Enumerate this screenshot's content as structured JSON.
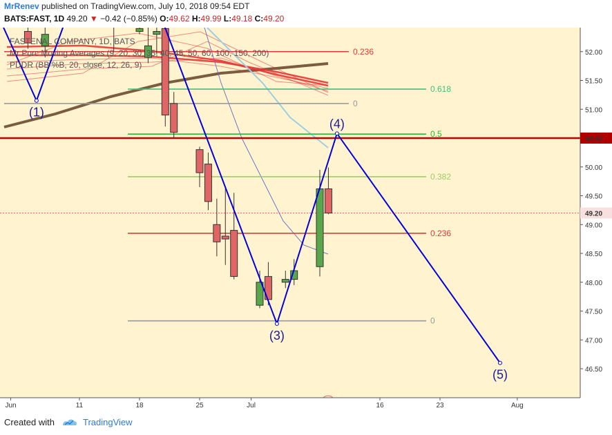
{
  "header": {
    "author": "MrRenev",
    "published": "published on TradingView.com, July 10, 2018 09:54 EDT"
  },
  "ohlc": {
    "symbol": "BATS:FAST, 1D",
    "last": "49.20",
    "change": "−0.42 (−0.85%)",
    "o_label": "O:",
    "o": "49.62",
    "h_label": "H:",
    "h": "49.99",
    "l_label": "L:",
    "l": "49.18",
    "c_label": "C:",
    "c": "49.20"
  },
  "legend": {
    "line1": "FASTENAL COMPANY, 1D, BATS",
    "line2": "Mr Porc Moving Averages (9, 20, 30, 35, 40, 45, 50, 60, 100, 150, 200)",
    "line3": "PDDR (BB %B, 20, close, 12, 26, 9)"
  },
  "footer": {
    "created": "Created with",
    "brand": "TradingView"
  },
  "colors": {
    "bg": "#fff3d0",
    "up": "#5aa64a",
    "down": "#e06666",
    "wave": "#0000dd",
    "ma_long": "#7a5c3e",
    "ma_red": "#e53935",
    "ma_blue": "#5c6bc0",
    "ma_lightblue": "#9ecfe0"
  },
  "chart_data": {
    "type": "candlestick",
    "symbol": "FAST",
    "timeframe": "1D",
    "ylim": [
      46.0,
      52.4
    ],
    "y_ticks": [
      "46.50",
      "47.00",
      "47.50",
      "48.00",
      "48.50",
      "49.00",
      "49.50",
      "50.00",
      "50.50",
      "51.00",
      "51.50",
      "52.00"
    ],
    "x_ticks": [
      "Jun",
      "11",
      "18",
      "25",
      "Jul",
      "16",
      "23",
      "Aug"
    ],
    "price_labels": [
      {
        "text": "50.50",
        "price": 50.5,
        "style": "dark-red"
      },
      {
        "text": "49.20",
        "price": 49.2,
        "style": "light-red"
      }
    ],
    "candles": [
      {
        "date": "2018-06-05",
        "o": 52.35,
        "h": 52.6,
        "l": 52.05,
        "c": 52.15
      },
      {
        "date": "2018-06-07",
        "o": 52.1,
        "h": 52.6,
        "l": 51.9,
        "c": 52.3
      },
      {
        "date": "2018-06-15",
        "o": 52.5,
        "h": 52.7,
        "l": 52.0,
        "c": 52.6
      },
      {
        "date": "2018-06-18",
        "o": 52.35,
        "h": 52.6,
        "l": 52.3,
        "c": 52.4
      },
      {
        "date": "2018-06-19",
        "o": 51.9,
        "h": 52.5,
        "l": 51.8,
        "c": 52.1
      },
      {
        "date": "2018-06-20",
        "o": 52.3,
        "h": 52.5,
        "l": 51.95,
        "c": 52.35
      },
      {
        "date": "2018-06-21",
        "o": 52.4,
        "h": 52.55,
        "l": 50.7,
        "c": 50.9
      },
      {
        "date": "2018-06-22",
        "o": 51.1,
        "h": 51.3,
        "l": 50.5,
        "c": 50.6
      },
      {
        "date": "2018-06-25",
        "o": 50.3,
        "h": 50.35,
        "l": 49.65,
        "c": 49.9
      },
      {
        "date": "2018-06-26",
        "o": 50.05,
        "h": 50.25,
        "l": 49.25,
        "c": 49.4
      },
      {
        "date": "2018-06-27",
        "o": 49.0,
        "h": 49.45,
        "l": 48.45,
        "c": 48.7
      },
      {
        "date": "2018-06-28",
        "o": 48.8,
        "h": 49.65,
        "l": 48.3,
        "c": 48.75
      },
      {
        "date": "2018-06-29",
        "o": 48.9,
        "h": 49.55,
        "l": 48.05,
        "c": 48.1
      },
      {
        "date": "2018-07-02",
        "o": 47.6,
        "h": 48.2,
        "l": 47.55,
        "c": 48.0
      },
      {
        "date": "2018-07-03",
        "o": 48.1,
        "h": 48.35,
        "l": 47.6,
        "c": 47.7
      },
      {
        "date": "2018-07-05",
        "o": 48.0,
        "h": 48.2,
        "l": 47.9,
        "c": 48.05
      },
      {
        "date": "2018-07-06",
        "o": 48.05,
        "h": 48.4,
        "l": 47.95,
        "c": 48.2
      },
      {
        "date": "2018-07-09",
        "o": 48.27,
        "h": 49.95,
        "l": 48.1,
        "c": 49.62
      },
      {
        "date": "2018-07-10",
        "o": 49.62,
        "h": 49.99,
        "l": 49.18,
        "c": 49.2
      }
    ],
    "fib_levels": [
      {
        "label": "0.236",
        "price": 52.0,
        "color": "#e53935"
      },
      {
        "label": "0.618",
        "price": 51.35,
        "color": "#43c07a"
      },
      {
        "label": "0",
        "price": 51.1,
        "color": "#999999"
      },
      {
        "label": "0.5",
        "price": 50.57,
        "color": "#22c02a"
      },
      {
        "label": "0.382",
        "price": 49.83,
        "color": "#9ccc65"
      },
      {
        "label": "0.236",
        "price": 48.85,
        "color": "#e53935"
      },
      {
        "label": "0",
        "price": 47.33,
        "color": "#999999"
      }
    ],
    "horizontal_line": {
      "price": 50.5,
      "color": "#c00000"
    },
    "elliott_wave": [
      {
        "label": "",
        "date": "2018-06-01",
        "price": 52.8
      },
      {
        "label": "(1)",
        "date": "2018-06-06",
        "price": 51.15
      },
      {
        "label": "",
        "date": "2018-06-10",
        "price": 52.8
      },
      {
        "label": "",
        "date": "2018-06-20",
        "price": 52.8
      },
      {
        "label": "(3)",
        "date": "2018-07-04",
        "price": 47.28
      },
      {
        "label": "(4)",
        "date": "2018-07-11",
        "price": 50.58
      },
      {
        "label": "(5)",
        "date": "2018-07-30",
        "price": 46.6
      }
    ],
    "event_marker": {
      "label": "E",
      "date": "2018-07-09",
      "price": 46.45
    }
  }
}
